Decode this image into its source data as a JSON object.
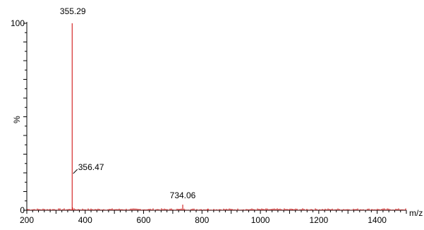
{
  "chart_data": {
    "type": "line",
    "xlabel": "m/z",
    "ylabel": "%",
    "xlim": [
      200,
      1500
    ],
    "ylim": [
      0,
      100
    ],
    "x_ticks": [
      200,
      400,
      600,
      800,
      1000,
      1200,
      1400
    ],
    "y_ticks": [
      0,
      100
    ],
    "series": [
      {
        "x": [
          355.29,
          356.47,
          734.06,
          820,
          1110
        ],
        "values": [
          100,
          1.5,
          3,
          0.8,
          0.6
        ],
        "color": "#cc0000"
      }
    ],
    "annotations": [
      {
        "label": "355.29",
        "x": 355.29,
        "y": 100
      },
      {
        "label": "356.47",
        "x": 356.47,
        "y": 1.5
      },
      {
        "label": "734.06",
        "x": 734.06,
        "y": 3
      }
    ]
  }
}
